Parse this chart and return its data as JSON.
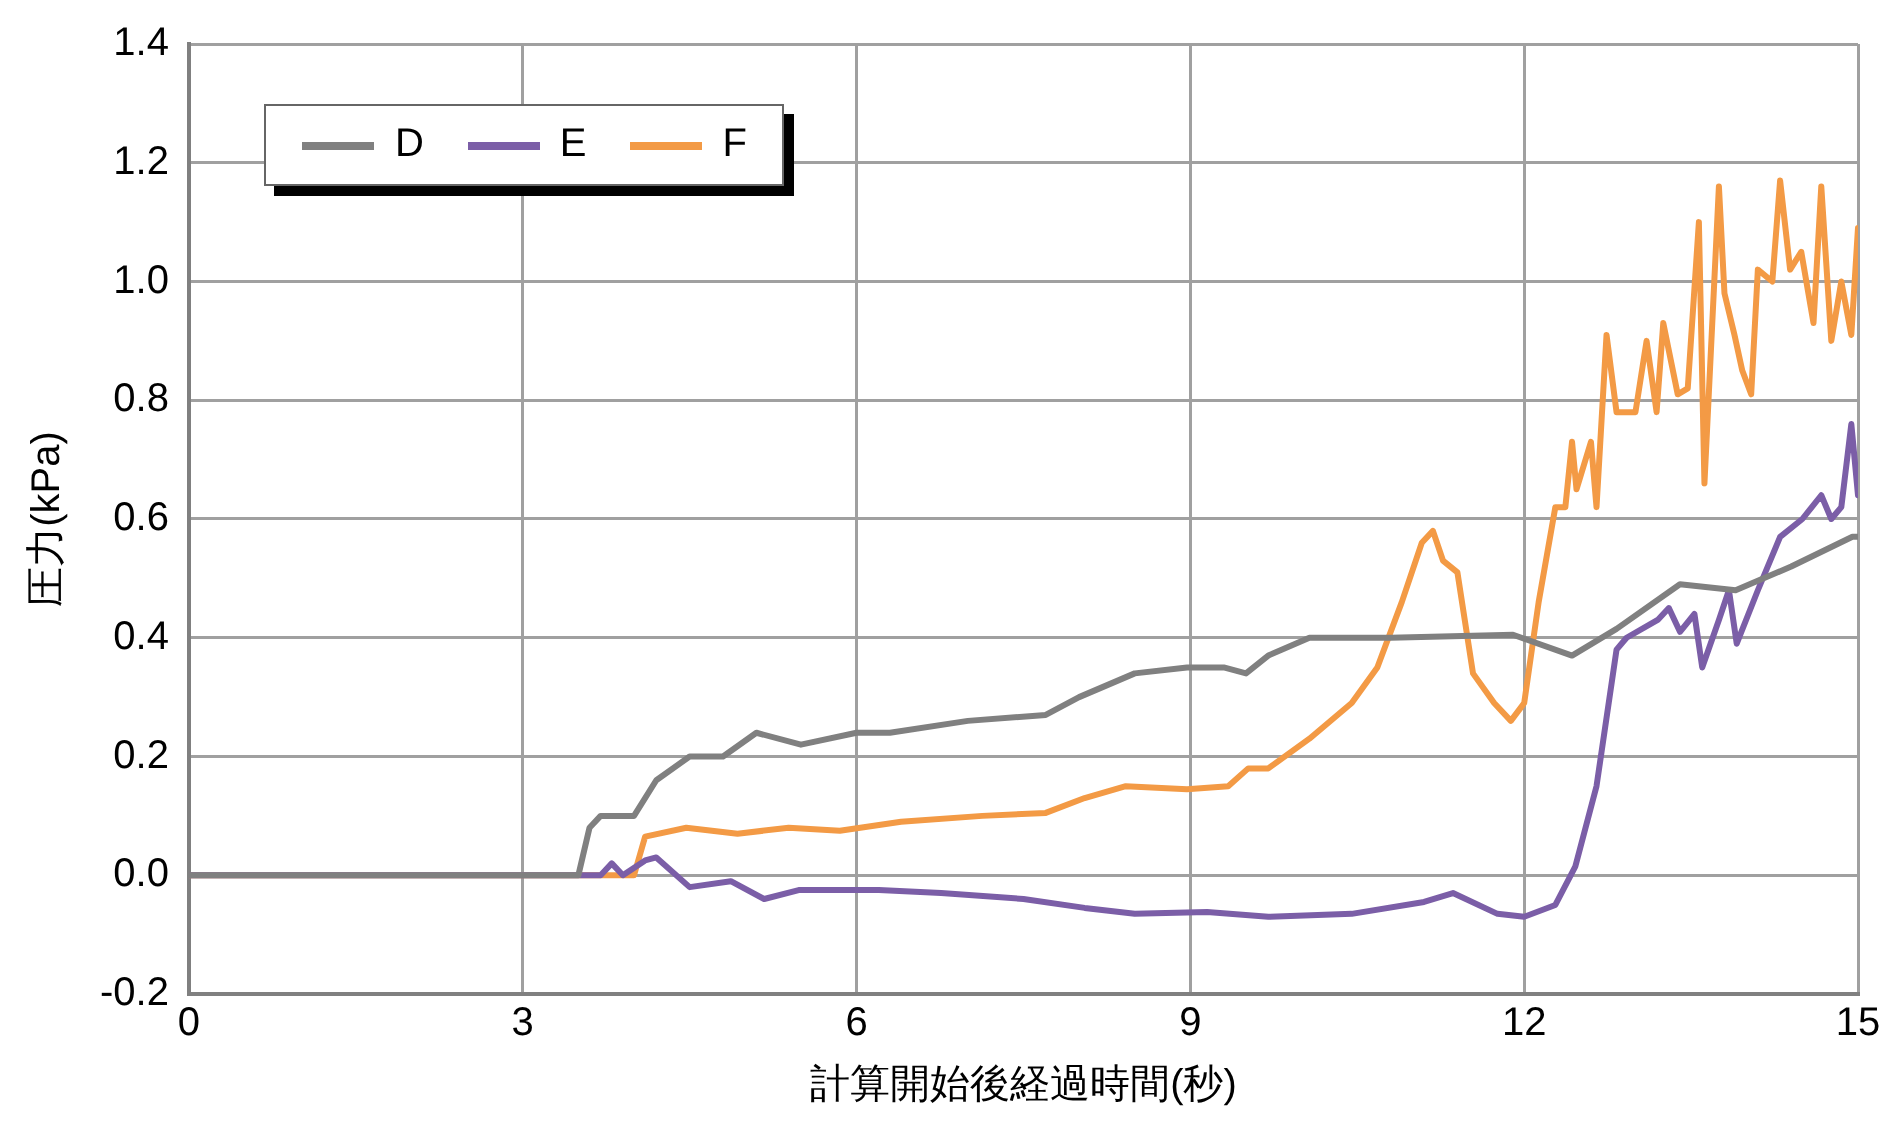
{
  "chart_data": {
    "type": "line",
    "xlabel": "計算開始後経過時間(秒)",
    "ylabel": "圧力(kPa)",
    "xlim": [
      0,
      15
    ],
    "xticks": [
      0,
      3,
      6,
      9,
      12,
      15
    ],
    "ylim": [
      -0.2,
      1.4
    ],
    "yticks": [
      {
        "value": -0.2,
        "label": "-0.2"
      },
      {
        "value": 0,
        "label": "0.0"
      },
      {
        "value": 0.2,
        "label": "0.2"
      },
      {
        "value": 0.4,
        "label": "0.4"
      },
      {
        "value": 0.6,
        "label": "0.6"
      },
      {
        "value": 0.8,
        "label": "0.8"
      },
      {
        "value": 1,
        "label": "1.0"
      },
      {
        "value": 1.2,
        "label": "1.2"
      },
      {
        "value": 1.4,
        "label": "1.4"
      }
    ],
    "grid": true,
    "legend": "top left",
    "marker": "none",
    "line_style": "solid",
    "series": [
      {
        "name": "D",
        "color": "#808080",
        "x": [
          0,
          3.5,
          3.6,
          3.7,
          4.0,
          4.2,
          4.5,
          4.8,
          5.1,
          5.5,
          6.0,
          6.3,
          7.0,
          7.7,
          8.0,
          8.5,
          8.97,
          9.3,
          9.5,
          9.7,
          10.07,
          10.8,
          11.9,
          12.43,
          12.83,
          13.4,
          13.9,
          14.4,
          14.95,
          15
        ],
        "values": [
          0,
          0,
          0.08,
          0.1,
          0.1,
          0.16,
          0.2,
          0.2,
          0.24,
          0.22,
          0.24,
          0.24,
          0.26,
          0.27,
          0.3,
          0.34,
          0.35,
          0.35,
          0.34,
          0.37,
          0.4,
          0.4,
          0.405,
          0.37,
          0.415,
          0.49,
          0.48,
          0.52,
          0.57,
          0.57
        ]
      },
      {
        "name": "E",
        "color": "#7b5ea7",
        "x": [
          0,
          3.7,
          3.8,
          3.9,
          4.1,
          4.2,
          4.5,
          4.87,
          5.17,
          5.48,
          6.2,
          6.76,
          7.5,
          8.05,
          8.5,
          9.15,
          9.7,
          10.45,
          11.1,
          11.36,
          11.76,
          12.0,
          12.28,
          12.46,
          12.65,
          12.83,
          12.92,
          13.2,
          13.3,
          13.4,
          13.53,
          13.6,
          13.75,
          13.84,
          13.91,
          14.1,
          14.3,
          14.5,
          14.67,
          14.76,
          14.85,
          14.94,
          15
        ],
        "values": [
          0,
          0,
          0.02,
          0,
          0.025,
          0.03,
          -0.02,
          -0.01,
          -0.04,
          -0.025,
          -0.025,
          -0.03,
          -0.04,
          -0.055,
          -0.065,
          -0.062,
          -0.07,
          -0.065,
          -0.045,
          -0.03,
          -0.065,
          -0.07,
          -0.05,
          0.015,
          0.15,
          0.38,
          0.4,
          0.43,
          0.45,
          0.41,
          0.44,
          0.35,
          0.43,
          0.48,
          0.39,
          0.48,
          0.57,
          0.6,
          0.64,
          0.6,
          0.62,
          0.76,
          0.64
        ]
      },
      {
        "name": "F",
        "color": "#f39a45",
        "x": [
          0,
          4.0,
          4.1,
          4.47,
          4.93,
          5.39,
          5.85,
          6.4,
          7.13,
          7.7,
          8.05,
          8.42,
          8.97,
          9.34,
          9.52,
          9.7,
          10.07,
          10.45,
          10.68,
          10.9,
          11.08,
          11.18,
          11.27,
          11.4,
          11.54,
          11.73,
          11.88,
          12.0,
          12.13,
          12.28,
          12.37,
          12.43,
          12.47,
          12.6,
          12.65,
          12.74,
          12.83,
          13.0,
          13.1,
          13.19,
          13.25,
          13.38,
          13.47,
          13.57,
          13.62,
          13.75,
          13.8,
          13.89,
          13.96,
          14.04,
          14.1,
          14.23,
          14.3,
          14.39,
          14.49,
          14.6,
          14.67,
          14.76,
          14.85,
          14.94,
          15
        ],
        "values": [
          0,
          0,
          0.065,
          0.08,
          0.07,
          0.08,
          0.075,
          0.09,
          0.1,
          0.105,
          0.13,
          0.15,
          0.145,
          0.15,
          0.18,
          0.18,
          0.23,
          0.29,
          0.35,
          0.46,
          0.56,
          0.58,
          0.53,
          0.51,
          0.34,
          0.29,
          0.26,
          0.29,
          0.46,
          0.62,
          0.62,
          0.73,
          0.65,
          0.73,
          0.62,
          0.91,
          0.78,
          0.78,
          0.9,
          0.78,
          0.93,
          0.81,
          0.82,
          1.1,
          0.66,
          1.16,
          0.98,
          0.91,
          0.85,
          0.81,
          1.02,
          1.0,
          1.17,
          1.02,
          1.05,
          0.93,
          1.16,
          0.9,
          1.0,
          0.91,
          1.09
        ]
      }
    ]
  }
}
